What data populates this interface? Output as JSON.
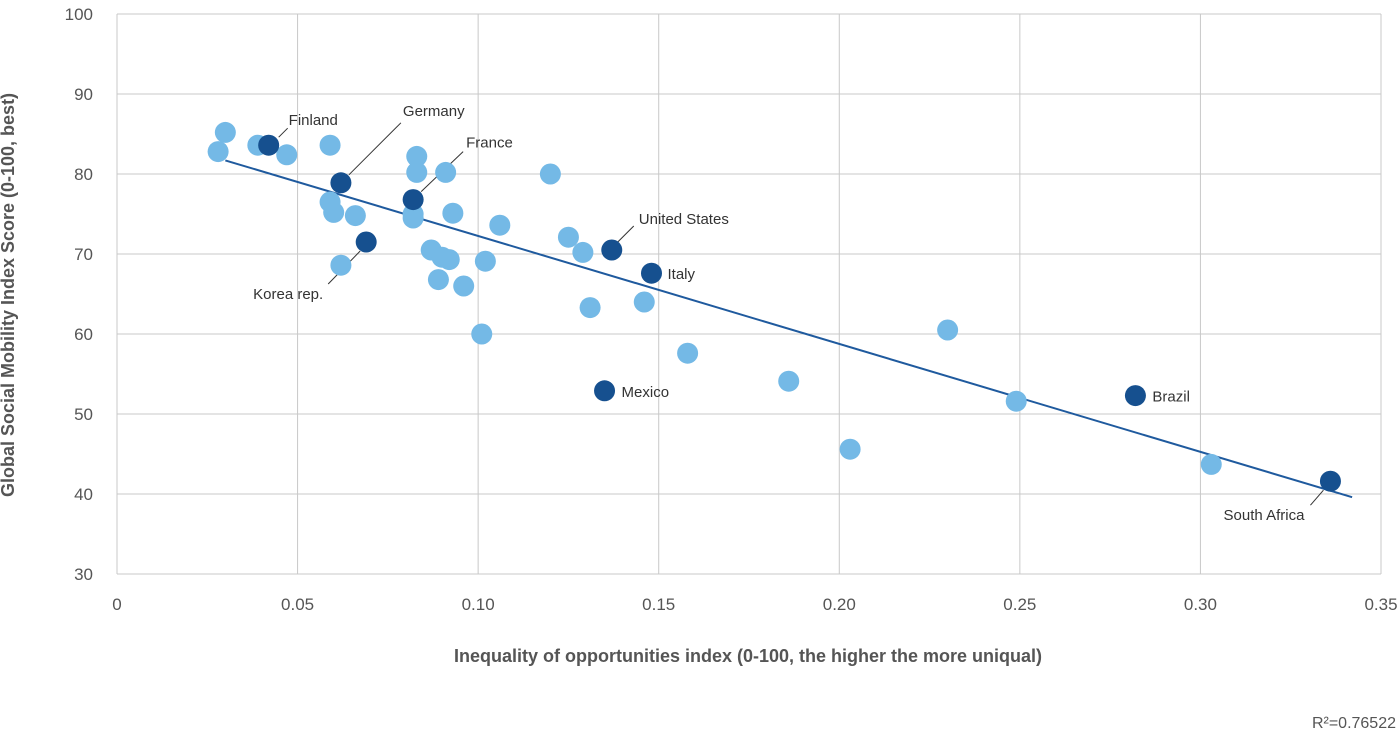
{
  "chart_data": {
    "type": "scatter",
    "title": "",
    "xlabel": "Inequality of opportunities index (0-100, the higher the more uniqual)",
    "ylabel": "Global Social Mobility Index Score (0-100, best)",
    "xlim": [
      0,
      0.35
    ],
    "ylim": [
      30,
      100
    ],
    "x_ticks": [
      0,
      0.05,
      0.1,
      0.15,
      0.2,
      0.25,
      0.3,
      0.35
    ],
    "x_tick_labels": [
      "0",
      "0.05",
      "0.10",
      "0.15",
      "0.20",
      "0.25",
      "0.30",
      "0.35"
    ],
    "y_ticks": [
      30,
      40,
      50,
      60,
      70,
      80,
      90,
      100
    ],
    "y_tick_labels": [
      "30",
      "40",
      "50",
      "60",
      "70",
      "80",
      "90",
      "100"
    ],
    "grid": true,
    "annotation": "R²=0.76522",
    "trendline": {
      "x": [
        0.03,
        0.342
      ],
      "y": [
        81.7,
        39.6
      ]
    },
    "colors": {
      "other": "#74b9e6",
      "highlight": "#16508f",
      "trendline": "#1f5a9e",
      "grid": "#c8c8c8"
    },
    "series": [
      {
        "name": "",
        "color_key": "other",
        "points": [
          {
            "x": 0.028,
            "y": 82.8
          },
          {
            "x": 0.03,
            "y": 85.2
          },
          {
            "x": 0.039,
            "y": 83.6
          },
          {
            "x": 0.047,
            "y": 82.4
          },
          {
            "x": 0.059,
            "y": 83.6
          },
          {
            "x": 0.059,
            "y": 76.5
          },
          {
            "x": 0.06,
            "y": 75.2
          },
          {
            "x": 0.066,
            "y": 74.8
          },
          {
            "x": 0.062,
            "y": 68.6
          },
          {
            "x": 0.083,
            "y": 82.2
          },
          {
            "x": 0.083,
            "y": 80.2
          },
          {
            "x": 0.091,
            "y": 80.2
          },
          {
            "x": 0.082,
            "y": 75.0
          },
          {
            "x": 0.082,
            "y": 74.5
          },
          {
            "x": 0.093,
            "y": 75.1
          },
          {
            "x": 0.087,
            "y": 70.5
          },
          {
            "x": 0.09,
            "y": 69.6
          },
          {
            "x": 0.092,
            "y": 69.3
          },
          {
            "x": 0.089,
            "y": 66.8
          },
          {
            "x": 0.096,
            "y": 66.0
          },
          {
            "x": 0.102,
            "y": 69.1
          },
          {
            "x": 0.106,
            "y": 73.6
          },
          {
            "x": 0.101,
            "y": 60.0
          },
          {
            "x": 0.12,
            "y": 80.0
          },
          {
            "x": 0.125,
            "y": 72.1
          },
          {
            "x": 0.129,
            "y": 70.2
          },
          {
            "x": 0.131,
            "y": 63.3
          },
          {
            "x": 0.146,
            "y": 64.0
          },
          {
            "x": 0.158,
            "y": 57.6
          },
          {
            "x": 0.186,
            "y": 54.1
          },
          {
            "x": 0.203,
            "y": 45.6
          },
          {
            "x": 0.23,
            "y": 60.5
          },
          {
            "x": 0.249,
            "y": 51.6
          },
          {
            "x": 0.303,
            "y": 43.7
          }
        ]
      },
      {
        "name": "",
        "color_key": "highlight",
        "points": [
          {
            "x": 0.042,
            "y": 83.6,
            "label": "Finland"
          },
          {
            "x": 0.062,
            "y": 78.9,
            "label": "Germany"
          },
          {
            "x": 0.082,
            "y": 76.8,
            "label": "France"
          },
          {
            "x": 0.069,
            "y": 71.5,
            "label": "Korea rep."
          },
          {
            "x": 0.137,
            "y": 70.5,
            "label": "United States"
          },
          {
            "x": 0.148,
            "y": 67.6,
            "label": "Italy"
          },
          {
            "x": 0.135,
            "y": 52.9,
            "label": "Mexico"
          },
          {
            "x": 0.282,
            "y": 52.3,
            "label": "Brazil"
          },
          {
            "x": 0.336,
            "y": 41.6,
            "label": "South Africa"
          }
        ]
      }
    ]
  }
}
